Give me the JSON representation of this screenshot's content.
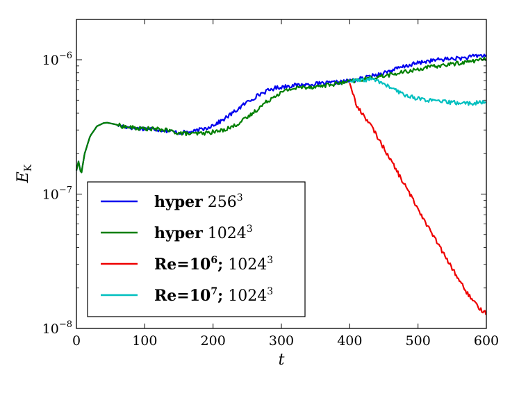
{
  "chart_data": {
    "type": "line",
    "title": "",
    "xlabel": "t",
    "ylabel_base": "E",
    "ylabel_sub": "K",
    "xlim": [
      0,
      600
    ],
    "ylim_log10": [
      -8,
      -5.7
    ],
    "yscale": "log",
    "grid": false,
    "legend_position": "lower-left",
    "x_ticks": [
      {
        "value": 0,
        "label": "0"
      },
      {
        "value": 100,
        "label": "100"
      },
      {
        "value": 200,
        "label": "200"
      },
      {
        "value": 300,
        "label": "300"
      },
      {
        "value": 400,
        "label": "400"
      },
      {
        "value": 500,
        "label": "500"
      },
      {
        "value": 600,
        "label": "600"
      }
    ],
    "y_ticks": [
      {
        "exp": -6,
        "base": "10",
        "sup": "−6"
      },
      {
        "exp": -7,
        "base": "10",
        "sup": "−7"
      },
      {
        "exp": -8,
        "base": "10",
        "sup": "−8"
      }
    ],
    "series": [
      {
        "name": "hyper 256^3",
        "legend_bold": "hyper",
        "legend_rest": " 256",
        "legend_sup": "3",
        "color": "#0000ee",
        "points": [
          [
            0,
            1.5e-07
          ],
          [
            3,
            1.75e-07
          ],
          [
            7,
            1.4e-07
          ],
          [
            12,
            2e-07
          ],
          [
            20,
            2.7e-07
          ],
          [
            30,
            3.2e-07
          ],
          [
            40,
            3.38e-07
          ],
          [
            45,
            3.4e-07
          ],
          [
            55,
            3.32e-07
          ],
          [
            70,
            3.18e-07
          ],
          [
            90,
            3.08e-07
          ],
          [
            110,
            3.06e-07
          ],
          [
            130,
            2.98e-07
          ],
          [
            150,
            2.86e-07
          ],
          [
            170,
            2.9e-07
          ],
          [
            190,
            3.1e-07
          ],
          [
            210,
            3.45e-07
          ],
          [
            230,
            4.05e-07
          ],
          [
            250,
            4.85e-07
          ],
          [
            270,
            5.6e-07
          ],
          [
            290,
            6.15e-07
          ],
          [
            310,
            6.4e-07
          ],
          [
            330,
            6.5e-07
          ],
          [
            350,
            6.6e-07
          ],
          [
            370,
            6.7e-07
          ],
          [
            390,
            6.85e-07
          ],
          [
            410,
            7.1e-07
          ],
          [
            430,
            7.5e-07
          ],
          [
            450,
            8e-07
          ],
          [
            470,
            8.6e-07
          ],
          [
            490,
            9.2e-07
          ],
          [
            510,
            9.7e-07
          ],
          [
            530,
            1e-06
          ],
          [
            550,
            1.02e-06
          ],
          [
            570,
            1.03e-06
          ],
          [
            585,
            1.07e-06
          ],
          [
            600,
            1.08e-06
          ]
        ]
      },
      {
        "name": "hyper 1024^3",
        "legend_bold": "hyper",
        "legend_rest": " 1024",
        "legend_sup": "3",
        "color": "#007f00",
        "points": [
          [
            0,
            1.5e-07
          ],
          [
            3,
            1.75e-07
          ],
          [
            7,
            1.4e-07
          ],
          [
            12,
            2e-07
          ],
          [
            20,
            2.7e-07
          ],
          [
            30,
            3.2e-07
          ],
          [
            40,
            3.38e-07
          ],
          [
            45,
            3.4e-07
          ],
          [
            55,
            3.32e-07
          ],
          [
            70,
            3.18e-07
          ],
          [
            90,
            3.08e-07
          ],
          [
            110,
            3.06e-07
          ],
          [
            130,
            3e-07
          ],
          [
            150,
            2.85e-07
          ],
          [
            170,
            2.8e-07
          ],
          [
            190,
            2.85e-07
          ],
          [
            210,
            2.95e-07
          ],
          [
            230,
            3.2e-07
          ],
          [
            250,
            3.7e-07
          ],
          [
            270,
            4.5e-07
          ],
          [
            290,
            5.4e-07
          ],
          [
            310,
            6e-07
          ],
          [
            330,
            6.25e-07
          ],
          [
            350,
            6.3e-07
          ],
          [
            370,
            6.5e-07
          ],
          [
            390,
            6.75e-07
          ],
          [
            410,
            7e-07
          ],
          [
            430,
            7.3e-07
          ],
          [
            450,
            7.6e-07
          ],
          [
            470,
            7.9e-07
          ],
          [
            490,
            8.3e-07
          ],
          [
            510,
            8.7e-07
          ],
          [
            530,
            9e-07
          ],
          [
            550,
            9.3e-07
          ],
          [
            570,
            9.6e-07
          ],
          [
            585,
            9.9e-07
          ],
          [
            600,
            1.01e-06
          ]
        ]
      },
      {
        "name": "Re=10^6; 1024^3",
        "legend_bold": "Re=10",
        "legend_bold_sup": "6",
        "legend_bold_tail": ";",
        "legend_rest": " 1024",
        "legend_sup": "3",
        "color": "#ee0000",
        "points": [
          [
            400,
            6.7e-07
          ],
          [
            405,
            5.6e-07
          ],
          [
            410,
            4.5e-07
          ],
          [
            420,
            3.9e-07
          ],
          [
            430,
            3.3e-07
          ],
          [
            440,
            2.7e-07
          ],
          [
            450,
            2.2e-07
          ],
          [
            460,
            1.8e-07
          ],
          [
            470,
            1.45e-07
          ],
          [
            480,
            1.18e-07
          ],
          [
            490,
            9.6e-08
          ],
          [
            500,
            7.8e-08
          ],
          [
            510,
            6.3e-08
          ],
          [
            520,
            5.1e-08
          ],
          [
            530,
            4.2e-08
          ],
          [
            540,
            3.4e-08
          ],
          [
            550,
            2.8e-08
          ],
          [
            560,
            2.3e-08
          ],
          [
            570,
            1.9e-08
          ],
          [
            580,
            1.6e-08
          ],
          [
            590,
            1.4e-08
          ],
          [
            600,
            1.3e-08
          ]
        ]
      },
      {
        "name": "Re=10^7; 1024^3",
        "legend_bold": "Re=10",
        "legend_bold_sup": "7",
        "legend_bold_tail": ";",
        "legend_rest": " 1024",
        "legend_sup": "3",
        "color": "#00bfbf",
        "points": [
          [
            400,
            6.9e-07
          ],
          [
            410,
            7e-07
          ],
          [
            420,
            7e-07
          ],
          [
            430,
            7.2e-07
          ],
          [
            440,
            7e-07
          ],
          [
            450,
            6.6e-07
          ],
          [
            460,
            6.2e-07
          ],
          [
            470,
            5.8e-07
          ],
          [
            480,
            5.5e-07
          ],
          [
            490,
            5.3e-07
          ],
          [
            500,
            5.15e-07
          ],
          [
            510,
            5.05e-07
          ],
          [
            520,
            4.95e-07
          ],
          [
            530,
            4.9e-07
          ],
          [
            540,
            4.85e-07
          ],
          [
            550,
            4.8e-07
          ],
          [
            560,
            4.78e-07
          ],
          [
            570,
            4.75e-07
          ],
          [
            580,
            4.75e-07
          ],
          [
            590,
            4.78e-07
          ],
          [
            600,
            4.8e-07
          ]
        ]
      }
    ]
  }
}
